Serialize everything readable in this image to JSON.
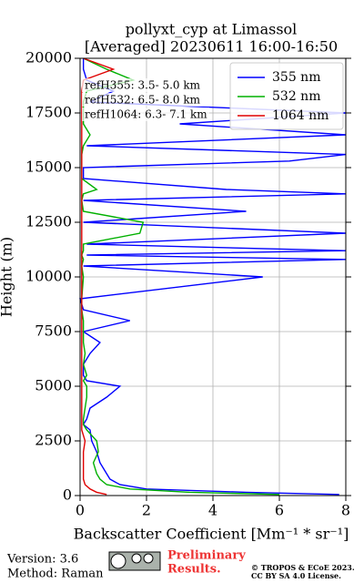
{
  "chart_data": {
    "type": "profile",
    "title": [
      "pollyxt_cyp at Limassol",
      "[Averaged] 20230611 16:00-16:50"
    ],
    "xlabel": "Backscatter Coefficient [Mm⁻¹ * sr⁻¹]",
    "ylabel": "Height (m)",
    "annotations": [
      "refH355:  3.5- 5.0 km",
      "refH532:  6.5- 8.0 km",
      "refH1064:  6.3- 7.1 km"
    ],
    "y": [
      50,
      150,
      300,
      500,
      750,
      1000,
      1500,
      2000,
      2500,
      3000,
      3250,
      3500,
      4000,
      4500,
      5000,
      5250,
      5500,
      6000,
      6500,
      7000,
      7500,
      8000,
      8500,
      9000,
      10000,
      10500,
      10800,
      11000,
      11200,
      11500,
      12000,
      12500,
      13000,
      13500,
      13800,
      14000,
      14500,
      15000,
      15300,
      15600,
      16000,
      16500,
      17000,
      17500,
      18000,
      18500,
      19000,
      19500,
      20000
    ],
    "series": [
      {
        "name": "355 nm",
        "color": "#0000ff",
        "values": [
          7.8,
          5,
          2,
          1.2,
          0.9,
          0.8,
          0.6,
          0.5,
          0.35,
          0.3,
          0.1,
          0.2,
          0.3,
          0.8,
          1.2,
          0.2,
          0.1,
          0.1,
          0.3,
          0.6,
          0.1,
          1.5,
          0.1,
          0,
          5.5,
          0.1,
          8,
          0.2,
          8,
          0.2,
          8,
          0.1,
          5,
          0.1,
          8,
          4.4,
          0.1,
          0.1,
          6.3,
          8,
          0.2,
          8,
          3,
          8,
          0.3,
          1,
          0.2,
          0.1,
          0.1
        ]
      },
      {
        "name": "532 nm",
        "color": "#00b000",
        "values": [
          6,
          3.3,
          1.5,
          0.8,
          0.6,
          0.5,
          0.4,
          0.55,
          0.5,
          0.2,
          0.1,
          0.1,
          0.15,
          0.2,
          0.2,
          0.1,
          0.2,
          0.1,
          0.15,
          0.1,
          0.1,
          0.1,
          0.05,
          0.05,
          0.1,
          0.05,
          0.1,
          0.05,
          0.1,
          0.1,
          1.8,
          1.9,
          0.1,
          0.05,
          0.1,
          0.5,
          0.05,
          0.05,
          0.05,
          0.05,
          0.1,
          0.3,
          0.1,
          0.1,
          0.1,
          0.2,
          1.6,
          0.8,
          0.1
        ]
      },
      {
        "name": "1064 nm",
        "color": "#e00000",
        "values": [
          0.8,
          0.5,
          0.3,
          0.15,
          0.1,
          0.1,
          0.1,
          0.1,
          0.15,
          0.05,
          0.05,
          0.05,
          0.05,
          0.05,
          0.05,
          0.05,
          0.05,
          0.05,
          0.05,
          0.05,
          0.05,
          0.05,
          0.05,
          0.05,
          0.05,
          0.05,
          0.05,
          0.05,
          0.05,
          0.05,
          0.05,
          0.05,
          0.05,
          0.05,
          0.05,
          0.05,
          0.05,
          0.05,
          0.05,
          0.05,
          0.05,
          0.05,
          0.05,
          0.05,
          0.05,
          0.05,
          0.1,
          1.0,
          0.1
        ]
      }
    ],
    "xlim": [
      0,
      8
    ],
    "xticks": [
      0,
      2,
      4,
      6,
      8
    ],
    "ylim": [
      0,
      20000
    ],
    "yticks": [
      0,
      2500,
      5000,
      7500,
      10000,
      12500,
      15000,
      17500,
      20000
    ],
    "grid": true,
    "legend": "upper right"
  },
  "footer": {
    "version": "Version: 3.6",
    "method": "Method: Raman",
    "preliminary": [
      "Preliminary",
      "Results."
    ],
    "copyright": [
      "© TROPOS & ECoE 2023.",
      "CC BY SA 4.0 License."
    ]
  }
}
